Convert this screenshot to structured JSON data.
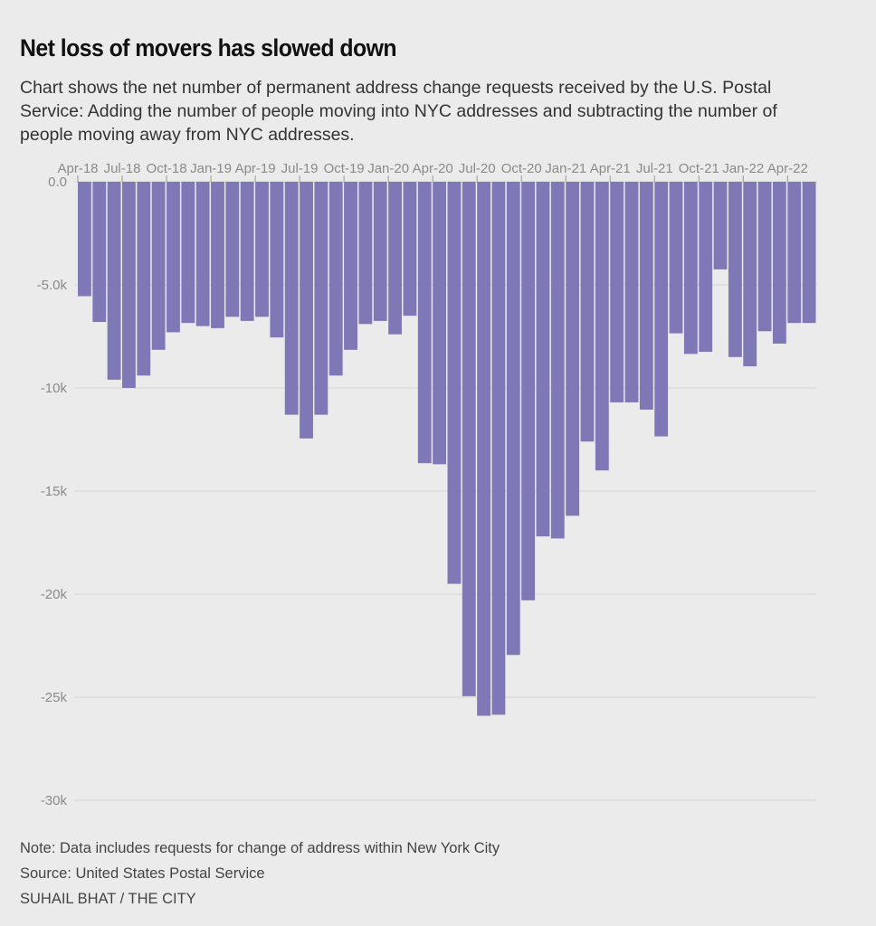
{
  "title": "Net loss of movers has slowed down",
  "subtitle": "Chart shows the net number of permanent address change requests received by the U.S. Postal Service: Adding the number of people moving into NYC addresses and subtracting the number of people moving away from NYC addresses.",
  "note": "Note: Data includes requests for change of address within New York City",
  "source": "Source: United States Postal Service",
  "credit": "SUHAIL BHAT / THE CITY",
  "colors": {
    "bar": "#7f78b6",
    "grid": "#d6d6d6",
    "tick_text": "#8a8a8a"
  },
  "chart_data": {
    "type": "bar",
    "categories": [
      "Apr-18",
      "May-18",
      "Jun-18",
      "Jul-18",
      "Aug-18",
      "Sep-18",
      "Oct-18",
      "Nov-18",
      "Dec-18",
      "Jan-19",
      "Feb-19",
      "Mar-19",
      "Apr-19",
      "May-19",
      "Jun-19",
      "Jul-19",
      "Aug-19",
      "Sep-19",
      "Oct-19",
      "Nov-19",
      "Dec-19",
      "Jan-20",
      "Feb-20",
      "Mar-20",
      "Apr-20",
      "May-20",
      "Jun-20",
      "Jul-20",
      "Aug-20",
      "Sep-20",
      "Oct-20",
      "Nov-20",
      "Dec-20",
      "Jan-21",
      "Feb-21",
      "Mar-21",
      "Apr-21",
      "May-21",
      "Jun-21",
      "Jul-21",
      "Aug-21",
      "Sep-21",
      "Oct-21",
      "Nov-21",
      "Dec-21",
      "Jan-22",
      "Feb-22",
      "Mar-22",
      "Apr-22",
      "May-22"
    ],
    "x_tick_labels": [
      "Apr-18",
      "Jul-18",
      "Oct-18",
      "Jan-19",
      "Apr-19",
      "Jul-19",
      "Oct-19",
      "Jan-20",
      "Apr-20",
      "Jul-20",
      "Oct-20",
      "Jan-21",
      "Apr-21",
      "Jul-21",
      "Oct-21",
      "Jan-22",
      "Apr-22"
    ],
    "values": [
      -5550,
      -6800,
      -9600,
      -10000,
      -9400,
      -8150,
      -7300,
      -6850,
      -7000,
      -7100,
      -6550,
      -6750,
      -6550,
      -7550,
      -11300,
      -12450,
      -11300,
      -9400,
      -8150,
      -6900,
      -6750,
      -7400,
      -6500,
      -13650,
      -13700,
      -19500,
      -24950,
      -25900,
      -25850,
      -22950,
      -20300,
      -17200,
      -17300,
      -16200,
      -12600,
      -14000,
      -10700,
      -10700,
      -11050,
      -12350,
      -7350,
      -8350,
      -8250,
      -4250,
      -8500,
      -8950,
      -7250,
      -7850,
      -6850,
      -6850
    ],
    "ylim": [
      -30000,
      0
    ],
    "y_ticks": [
      0,
      -5000,
      -10000,
      -15000,
      -20000,
      -25000,
      -30000
    ],
    "y_tick_labels": [
      "0.0",
      "-5.0k",
      "-10k",
      "-15k",
      "-20k",
      "-25k",
      "-30k"
    ],
    "xlabel": "",
    "ylabel": "",
    "grid": true,
    "x_axis_position": "top"
  }
}
